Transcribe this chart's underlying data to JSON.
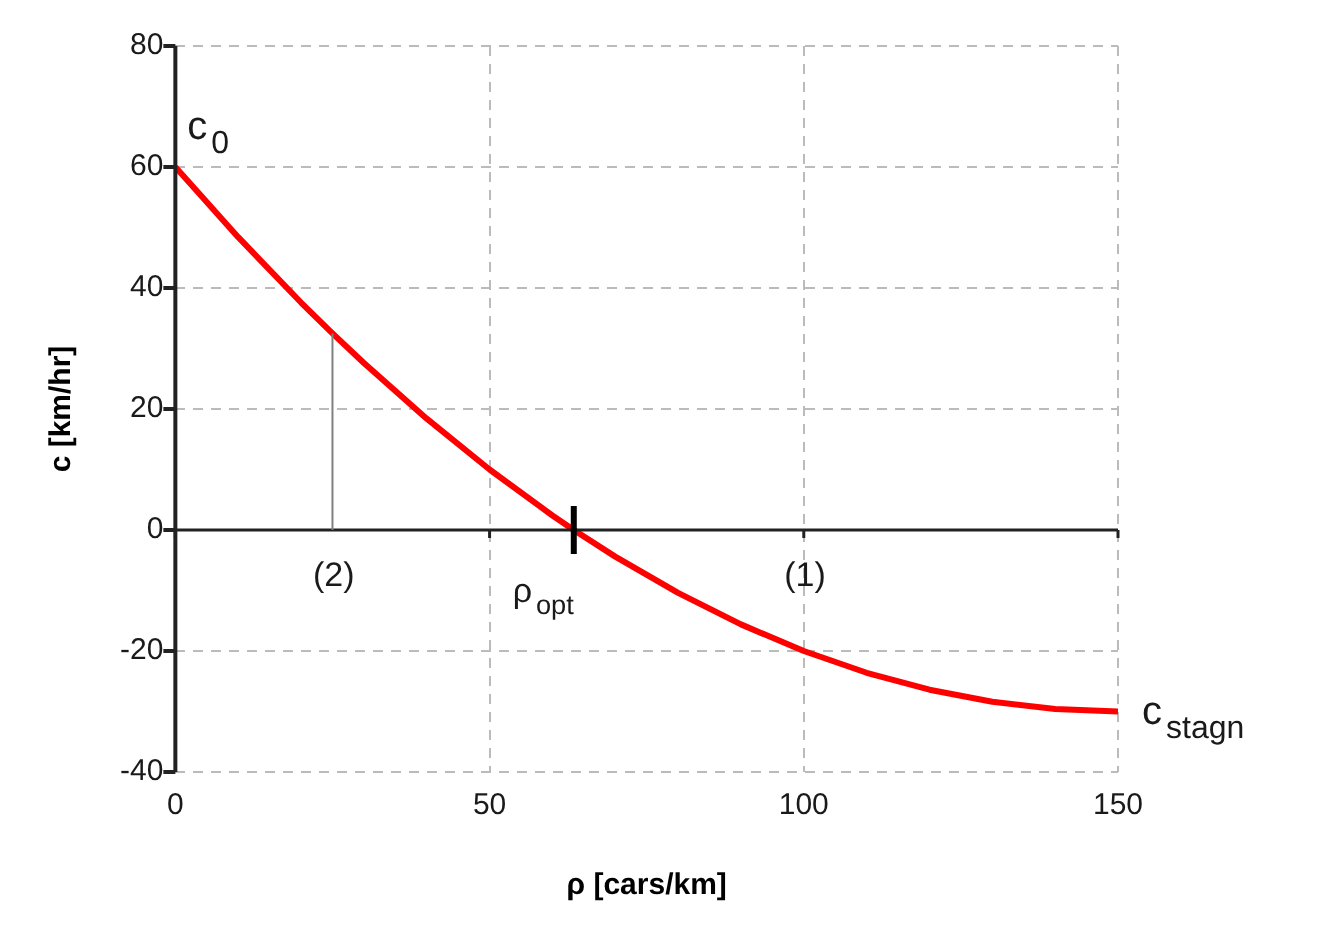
{
  "chart_data": {
    "type": "line",
    "xlabel": "ρ [cars/km]",
    "ylabel": "c [km/hr]",
    "x": [
      0,
      10,
      20,
      25,
      30,
      40,
      50,
      60,
      63.4,
      70,
      80,
      90,
      100,
      110,
      120,
      130,
      140,
      150
    ],
    "series": [
      {
        "color": "#ff0000",
        "values": [
          60,
          48.4,
          37.6,
          32.5,
          27.6,
          18.4,
          10,
          2.4,
          0,
          -4.4,
          -10.4,
          -15.6,
          -20,
          -23.6,
          -26.4,
          -28.4,
          -29.6,
          -30
        ]
      }
    ],
    "xlim": [
      0,
      150
    ],
    "xticks": [
      0,
      50,
      100,
      150
    ],
    "ylim": [
      -40,
      80
    ],
    "yticks": [
      -40,
      -20,
      0,
      20,
      40,
      60,
      80
    ],
    "grid": true,
    "marker": "none",
    "line_style": "solid",
    "ref_lines": [
      {
        "axis": "x",
        "value": 25,
        "color": "#808080"
      },
      {
        "axis": "x",
        "value": 63.4,
        "label": "ρ$_{opt}$",
        "color": "#000000"
      }
    ],
    "annotations": [
      {
        "text": "c$_{0}$",
        "x": 0,
        "y": 60
      },
      {
        "text": "c$_{stagn}$",
        "x": 150,
        "y": -30
      },
      "(2)",
      "(1)"
    ]
  }
}
